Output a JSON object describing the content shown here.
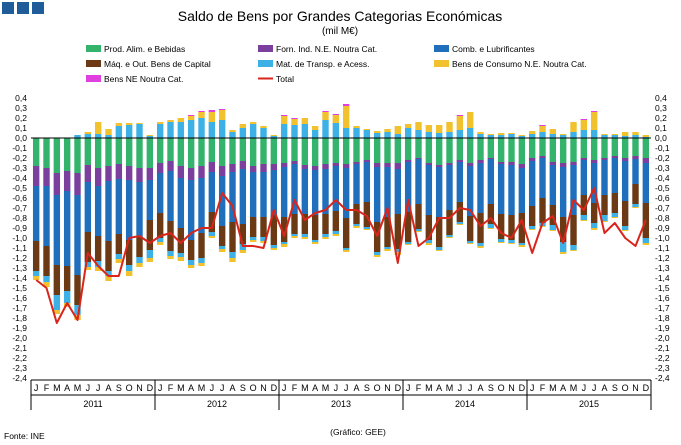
{
  "chart_data": {
    "type": "bar",
    "stacked": true,
    "title": "Saldo de Bens por Grandes Categorias Económicas",
    "subtitle": "(mil M€)",
    "source": "Fonte: INE",
    "credit": "(Gráfico: GEE)",
    "ylim": [
      -2.4,
      0.4
    ],
    "yticks": [
      "0,4",
      "0,3",
      "0,2",
      "0,1",
      "0,0",
      "-0,1",
      "-0,2",
      "-0,3",
      "-0,4",
      "-0,5",
      "-0,6",
      "-0,7",
      "-0,8",
      "-0,9",
      "-1,0",
      "-1,1",
      "-1,2",
      "-1,3",
      "-1,4",
      "-1,5",
      "-1,6",
      "-1,7",
      "-1,8",
      "-1,9",
      "-2,0",
      "-2,1",
      "-2,2",
      "-2,3",
      "-2,4"
    ],
    "months": [
      "J",
      "F",
      "M",
      "A",
      "M",
      "J",
      "J",
      "A",
      "S",
      "O",
      "N",
      "D",
      "J",
      "F",
      "M",
      "A",
      "M",
      "J",
      "J",
      "A",
      "S",
      "O",
      "N",
      "D",
      "J",
      "F",
      "M",
      "A",
      "M",
      "J",
      "J",
      "A",
      "S",
      "O",
      "N",
      "D",
      "J",
      "F",
      "M",
      "A",
      "M",
      "J",
      "J",
      "A",
      "S",
      "O",
      "N",
      "D",
      "J",
      "F",
      "M",
      "A",
      "M",
      "J",
      "J",
      "A",
      "S",
      "O",
      "N",
      "D"
    ],
    "years": [
      "2011",
      "2012",
      "2013",
      "2014",
      "2015"
    ],
    "legend": [
      "Prod. Alim. e Bebidas",
      "Forn. Ind. N.E. Noutra Cat.",
      "Comb. e Lubrificantes",
      "Máq. e Out. Bens de Capital",
      "Mat. de Transp. e Acess.",
      "Bens de Consumo N.E. Noutra Cat.",
      "Bens NE Noutra Cat.",
      "Total"
    ],
    "colors": {
      "food": "#33b36b",
      "industrial": "#7b3f9e",
      "fuel": "#1f6fbd",
      "capital": "#6b3a14",
      "transport": "#3db0e6",
      "consumer": "#f2c12e",
      "ne": "#e040e0",
      "total": "#d9251c"
    },
    "series": [
      {
        "name": "Prod. Alim. e Bebidas",
        "key": "food",
        "values": [
          -0.28,
          -0.3,
          -0.35,
          -0.33,
          -0.35,
          -0.27,
          -0.3,
          -0.28,
          -0.26,
          -0.28,
          -0.3,
          -0.3,
          -0.25,
          -0.23,
          -0.28,
          -0.3,
          -0.28,
          -0.24,
          -0.28,
          -0.26,
          -0.23,
          -0.28,
          -0.26,
          -0.26,
          -0.25,
          -0.23,
          -0.27,
          -0.28,
          -0.26,
          -0.25,
          -0.26,
          -0.24,
          -0.22,
          -0.25,
          -0.25,
          -0.25,
          -0.22,
          -0.2,
          -0.25,
          -0.27,
          -0.25,
          -0.22,
          -0.25,
          -0.22,
          -0.2,
          -0.24,
          -0.24,
          -0.26,
          -0.2,
          -0.18,
          -0.24,
          -0.25,
          -0.24,
          -0.2,
          -0.22,
          -0.2,
          -0.18,
          -0.2,
          -0.18,
          -0.2
        ]
      },
      {
        "name": "Forn. Ind. N.E. Noutra Cat.",
        "key": "industrial",
        "values": [
          -0.2,
          -0.18,
          -0.22,
          -0.2,
          -0.22,
          -0.17,
          -0.18,
          -0.15,
          -0.15,
          -0.14,
          -0.14,
          -0.12,
          -0.1,
          -0.1,
          -0.12,
          -0.12,
          -0.12,
          -0.1,
          -0.1,
          -0.08,
          -0.08,
          -0.06,
          -0.08,
          -0.06,
          -0.04,
          -0.03,
          -0.04,
          -0.04,
          -0.05,
          -0.03,
          -0.04,
          -0.02,
          -0.02,
          -0.04,
          -0.04,
          -0.06,
          -0.02,
          -0.01,
          -0.02,
          -0.02,
          -0.02,
          -0.02,
          -0.03,
          -0.03,
          -0.01,
          -0.02,
          -0.03,
          -0.04,
          -0.03,
          -0.02,
          -0.03,
          -0.04,
          -0.03,
          -0.02,
          -0.03,
          -0.02,
          -0.02,
          -0.03,
          -0.03,
          -0.05
        ]
      },
      {
        "name": "Comb. e Lubrificantes",
        "key": "fuel",
        "values": [
          -0.55,
          -0.6,
          -0.7,
          -0.75,
          -0.8,
          -0.5,
          -0.5,
          -0.6,
          -0.55,
          -0.6,
          -0.55,
          -0.4,
          -0.4,
          -0.5,
          -0.5,
          -0.6,
          -0.55,
          -0.4,
          -0.5,
          -0.5,
          -0.55,
          -0.45,
          -0.45,
          -0.45,
          -0.5,
          -0.5,
          -0.45,
          -0.45,
          -0.45,
          -0.45,
          -0.5,
          -0.4,
          -0.4,
          -0.55,
          -0.5,
          -0.45,
          -0.5,
          -0.45,
          -0.5,
          -0.5,
          -0.45,
          -0.4,
          -0.5,
          -0.5,
          -0.45,
          -0.5,
          -0.5,
          -0.45,
          -0.45,
          -0.4,
          -0.4,
          -0.5,
          -0.5,
          -0.35,
          -0.4,
          -0.35,
          -0.35,
          -0.4,
          -0.25,
          -0.4
        ]
      },
      {
        "name": "Máq. e Out. Bens de Capital",
        "key": "capital",
        "values": [
          -0.3,
          -0.3,
          -0.3,
          -0.25,
          -0.3,
          -0.3,
          -0.25,
          -0.3,
          -0.2,
          -0.25,
          -0.2,
          -0.3,
          -0.25,
          -0.3,
          -0.25,
          -0.2,
          -0.25,
          -0.2,
          -0.2,
          -0.3,
          -0.2,
          -0.2,
          -0.2,
          -0.3,
          -0.25,
          -0.2,
          -0.2,
          -0.25,
          -0.2,
          -0.2,
          -0.3,
          -0.2,
          -0.25,
          -0.3,
          -0.3,
          -0.35,
          -0.3,
          -0.25,
          -0.25,
          -0.3,
          -0.25,
          -0.2,
          -0.25,
          -0.3,
          -0.2,
          -0.25,
          -0.25,
          -0.3,
          -0.2,
          -0.25,
          -0.2,
          -0.25,
          -0.3,
          -0.2,
          -0.2,
          -0.2,
          -0.2,
          -0.25,
          -0.2,
          -0.35
        ]
      },
      {
        "name": "Mat. de Transp. e Acess.",
        "key": "transport",
        "values": [
          -0.05,
          -0.06,
          -0.15,
          -0.12,
          -0.1,
          -0.05,
          -0.06,
          -0.05,
          -0.05,
          -0.06,
          -0.06,
          -0.08,
          -0.04,
          -0.05,
          -0.04,
          -0.05,
          -0.05,
          -0.04,
          -0.03,
          -0.06,
          -0.06,
          -0.03,
          -0.04,
          -0.03,
          -0.02,
          -0.02,
          -0.03,
          -0.02,
          -0.03,
          -0.03,
          -0.02,
          -0.02,
          -0.02,
          -0.03,
          -0.02,
          -0.03,
          -0.02,
          -0.02,
          -0.03,
          -0.03,
          -0.02,
          -0.02,
          -0.02,
          -0.03,
          -0.04,
          -0.03,
          -0.03,
          -0.02,
          -0.03,
          -0.03,
          -0.05,
          -0.1,
          -0.05,
          -0.05,
          -0.05,
          -0.06,
          -0.04,
          -0.04,
          -0.03,
          -0.05
        ]
      },
      {
        "name": "Bens de Consumo N.E. Noutra Cat.",
        "key": "consumer",
        "values": [
          -0.04,
          -0.05,
          -0.04,
          -0.04,
          -0.05,
          -0.03,
          -0.04,
          -0.05,
          -0.04,
          -0.05,
          -0.04,
          -0.04,
          -0.03,
          -0.03,
          -0.04,
          -0.03,
          -0.03,
          -0.02,
          -0.03,
          -0.04,
          -0.03,
          -0.02,
          -0.02,
          -0.02,
          -0.03,
          -0.02,
          -0.02,
          -0.02,
          -0.02,
          -0.02,
          -0.02,
          -0.02,
          -0.01,
          -0.02,
          -0.02,
          -0.03,
          -0.01,
          -0.01,
          -0.02,
          -0.01,
          -0.01,
          -0.01,
          -0.01,
          -0.02,
          -0.01,
          -0.01,
          -0.01,
          -0.02,
          -0.01,
          -0.01,
          -0.01,
          -0.02,
          -0.01,
          -0.01,
          -0.02,
          -0.01,
          -0.01,
          -0.01,
          -0.01,
          -0.02
        ]
      },
      {
        "name": "Bens NE Noutra Cat.",
        "key": "ne",
        "values": [
          0,
          0,
          0,
          0,
          0,
          0,
          0,
          0,
          0,
          0,
          0,
          0,
          0,
          0,
          0,
          0,
          0,
          0,
          0,
          0,
          0,
          0,
          0,
          0,
          0,
          0,
          0,
          0,
          0,
          0,
          0,
          0,
          0,
          0,
          0,
          0,
          0,
          0,
          0,
          0,
          0,
          0,
          0,
          0,
          0,
          0,
          0,
          0,
          0,
          0,
          0,
          0,
          0,
          0,
          0,
          0,
          0,
          0,
          0,
          0
        ]
      }
    ],
    "positive_series": [
      {
        "name": "Mat. de Transp. e Acess.",
        "key": "transport",
        "values": [
          0,
          0,
          0,
          0,
          0.03,
          0.04,
          0.04,
          0.03,
          0.12,
          0.13,
          0.14,
          0.02,
          0.14,
          0.16,
          0.16,
          0.18,
          0.2,
          0.16,
          0.18,
          0.06,
          0.1,
          0.14,
          0.1,
          0.02,
          0.14,
          0.13,
          0.14,
          0.08,
          0.18,
          0.15,
          0.1,
          0.1,
          0.08,
          0.05,
          0.06,
          0.04,
          0.1,
          0.08,
          0.06,
          0.05,
          0.06,
          0.08,
          0.1,
          0.04,
          0.03,
          0.03,
          0.04,
          0.02,
          0.04,
          0.06,
          0.04,
          0.03,
          0.06,
          0.08,
          0.08,
          0.03,
          0.03,
          0.02,
          0.03,
          0.01
        ]
      },
      {
        "name": "Bens de Consumo N.E. Noutra Cat.",
        "key": "consumer",
        "values": [
          0,
          0,
          0,
          0,
          0,
          0.02,
          0.12,
          0.06,
          0.03,
          0.02,
          0.01,
          0.01,
          0.02,
          0.02,
          0.04,
          0.04,
          0.06,
          0.1,
          0.1,
          0.02,
          0.04,
          0.02,
          0.02,
          0.01,
          0.08,
          0.06,
          0.06,
          0.04,
          0.08,
          0.08,
          0.22,
          0.02,
          0.01,
          0.02,
          0.03,
          0.08,
          0.04,
          0.08,
          0.07,
          0.08,
          0.1,
          0.14,
          0.16,
          0.02,
          0.01,
          0.02,
          0.01,
          0.01,
          0.03,
          0.06,
          0.05,
          0.01,
          0.1,
          0.1,
          0.18,
          0.01,
          0.01,
          0.04,
          0.03,
          0.02
        ]
      },
      {
        "name": "Bens NE Noutra Cat.",
        "key": "ne",
        "values": [
          0,
          0,
          0,
          0,
          0,
          0,
          0,
          0,
          0,
          0,
          0,
          0,
          0,
          0,
          0,
          0.01,
          0.01,
          0.02,
          0.01,
          0,
          0,
          0,
          0,
          0,
          0.01,
          0.01,
          0,
          0,
          0.01,
          0.01,
          0.02,
          0,
          0,
          0,
          0,
          0,
          0,
          0,
          0,
          0,
          0,
          0.01,
          0,
          0,
          0,
          0,
          0,
          0,
          0,
          0.01,
          0,
          0,
          0,
          0.01,
          0.01,
          0,
          0,
          0,
          0,
          0
        ]
      }
    ],
    "total": {
      "name": "Total",
      "values": [
        -1.42,
        -1.5,
        -1.85,
        -1.65,
        -1.82,
        -1.15,
        -1.28,
        -1.38,
        -1.38,
        -1.0,
        -0.98,
        -1.05,
        -0.98,
        -0.95,
        -1.05,
        -0.95,
        -0.9,
        -0.9,
        -0.55,
        -0.68,
        -1.08,
        -1.08,
        -1.1,
        -0.72,
        -0.98,
        -0.62,
        -0.82,
        -0.75,
        -0.72,
        -0.62,
        -0.72,
        -0.72,
        -0.78,
        -0.98,
        -0.7,
        -1.25,
        -0.62,
        -1.08,
        -1.0,
        -0.8,
        -0.8,
        -0.7,
        -0.72,
        -0.88,
        -0.8,
        -0.95,
        -1.0,
        -0.82,
        -1.15,
        -0.85,
        -0.78,
        -1.05,
        -0.62,
        -0.72,
        -0.5,
        -0.95,
        -0.85,
        -1.0,
        -1.08,
        -0.82
      ]
    }
  }
}
